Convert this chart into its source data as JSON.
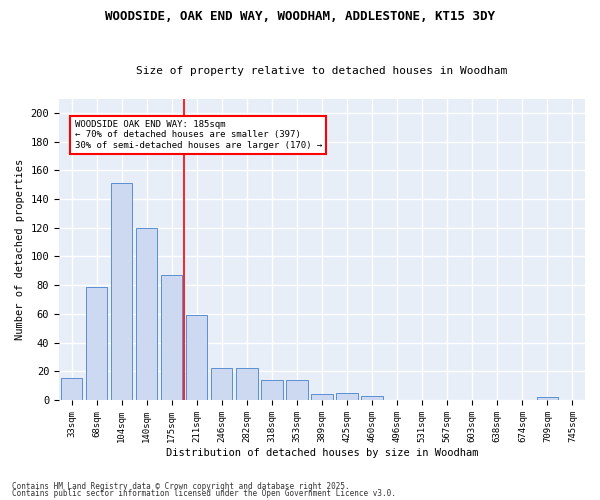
{
  "title1": "WOODSIDE, OAK END WAY, WOODHAM, ADDLESTONE, KT15 3DY",
  "title2": "Size of property relative to detached houses in Woodham",
  "xlabel": "Distribution of detached houses by size in Woodham",
  "ylabel": "Number of detached properties",
  "categories": [
    "33sqm",
    "68sqm",
    "104sqm",
    "140sqm",
    "175sqm",
    "211sqm",
    "246sqm",
    "282sqm",
    "318sqm",
    "353sqm",
    "389sqm",
    "425sqm",
    "460sqm",
    "496sqm",
    "531sqm",
    "567sqm",
    "603sqm",
    "638sqm",
    "674sqm",
    "709sqm",
    "745sqm"
  ],
  "values": [
    15,
    79,
    151,
    120,
    87,
    59,
    22,
    22,
    14,
    14,
    4,
    5,
    3,
    0,
    0,
    0,
    0,
    0,
    0,
    2,
    0
  ],
  "bar_color": "#ccd9f0",
  "bar_edge_color": "#5b8fd4",
  "background_color": "#e8eef8",
  "grid_color": "#ffffff",
  "vline_x": 4.5,
  "vline_color": "red",
  "annotation_text": "WOODSIDE OAK END WAY: 185sqm\n← 70% of detached houses are smaller (397)\n30% of semi-detached houses are larger (170) →",
  "annotation_box_color": "white",
  "annotation_box_edge": "red",
  "ylim": [
    0,
    210
  ],
  "yticks": [
    0,
    20,
    40,
    60,
    80,
    100,
    120,
    140,
    160,
    180,
    200
  ],
  "footnote1": "Contains HM Land Registry data © Crown copyright and database right 2025.",
  "footnote2": "Contains public sector information licensed under the Open Government Licence v3.0."
}
